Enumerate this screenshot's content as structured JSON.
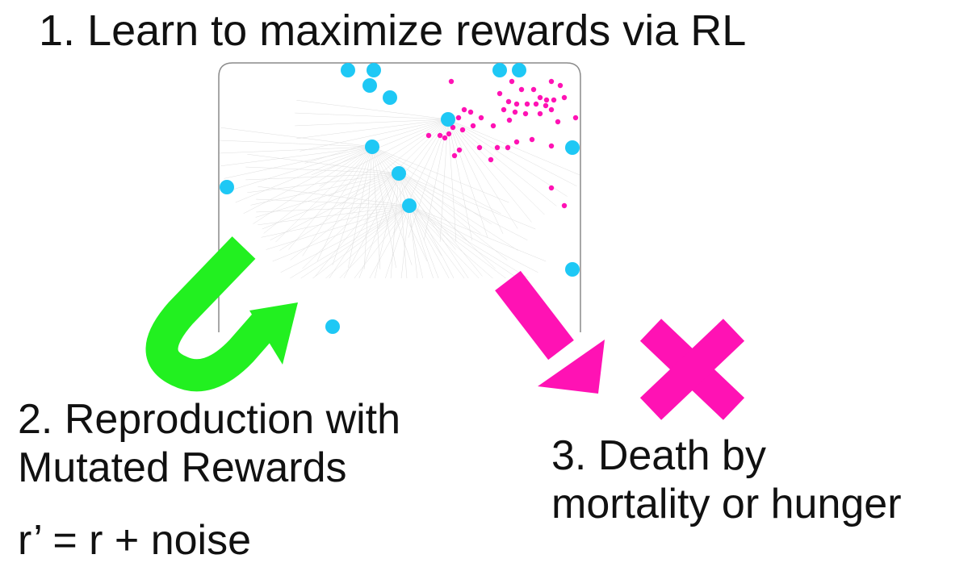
{
  "title": "1. Learn to maximize rewards via RL",
  "step2": {
    "line1": "2. Reproduction with",
    "line2": "Mutated Rewards",
    "formula": "r’ = r + noise"
  },
  "step3": {
    "line1": "3. Death by",
    "line2": "mortality or hunger"
  },
  "colors": {
    "agent": "#1ec8f5",
    "food": "#ff12b4",
    "reproduction_arrow": "#22f020",
    "death_arrow": "#ff12b4",
    "frame": "#8a8a8a"
  },
  "icons": [
    "agent-dot",
    "food-dot",
    "curved-arrow",
    "down-right-arrow",
    "x-mark"
  ]
}
